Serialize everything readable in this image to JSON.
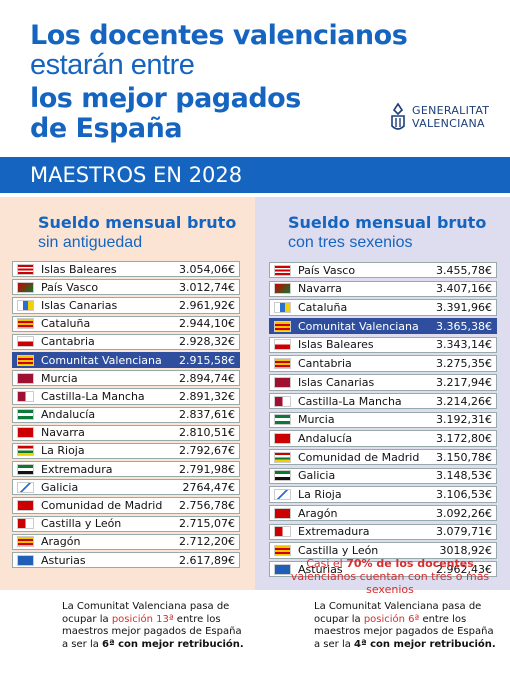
{
  "header": {
    "title_lines": [
      "Los docentes valencianos",
      "estarán entre",
      "los mejor pagados",
      "de España"
    ],
    "logo": [
      "GENERALITAT",
      "VALENCIANA"
    ]
  },
  "banner": "MAESTROS EN 2028",
  "panels": [
    {
      "heading": "Sueldo mensual bruto",
      "subheading": "sin antiguedad",
      "rows": [
        [
          "Islas Baleares",
          "3.054,06€"
        ],
        [
          "País Vasco",
          "3.012,74€"
        ],
        [
          "Islas Canarias",
          "2.961,92€"
        ],
        [
          "Cataluña",
          "2.944,10€"
        ],
        [
          "Cantabria",
          "2.928,32€"
        ],
        [
          "Comunitat Valenciana",
          "2.915,58€"
        ],
        [
          "Murcia",
          "2.894,74€"
        ],
        [
          "Castilla-La Mancha",
          "2.891,32€"
        ],
        [
          "Andalucía",
          "2.837,61€"
        ],
        [
          "Navarra",
          "2.810,51€"
        ],
        [
          "La Rioja",
          "2.792,67€"
        ],
        [
          "Extremadura",
          "2.791,98€"
        ],
        [
          "Galicia",
          "2764,47€"
        ],
        [
          "Comunidad de Madrid",
          "2.756,78€"
        ],
        [
          "Castilla y León",
          "2.715,07€"
        ],
        [
          "Aragón",
          "2.712,20€"
        ],
        [
          "Asturias",
          "2.617,89€"
        ]
      ]
    },
    {
      "heading": "Sueldo mensual bruto",
      "subheading": "con tres sexenios",
      "rows": [
        [
          "País Vasco",
          "3.455,78€"
        ],
        [
          "Navarra",
          "3.407,16€"
        ],
        [
          "Cataluña",
          "3.391,96€"
        ],
        [
          "Comunitat Valenciana",
          "3.365,38€"
        ],
        [
          "Islas Baleares",
          "3.343,14€"
        ],
        [
          "Cantabria",
          "3.275,35€"
        ],
        [
          "Islas Canarias",
          "3.217,94€"
        ],
        [
          "Castilla-La Mancha",
          "3.214,26€"
        ],
        [
          "Murcia",
          "3.192,31€"
        ],
        [
          "Andalucía",
          "3.172,80€"
        ],
        [
          "Comunidad de Madrid",
          "3.150,78€"
        ],
        [
          "Galicia",
          "3.148,53€"
        ],
        [
          "La Rioja",
          "3.106,53€"
        ],
        [
          "Aragón",
          "3.092,26€"
        ],
        [
          "Extremadura",
          "3.079,71€"
        ],
        [
          "Castilla y León",
          "3018,92€"
        ],
        [
          "Asturias",
          "2.962,43€"
        ]
      ]
    }
  ],
  "note": {
    "before": "Casi el ",
    "emphasis": "70% de los docentes",
    "after": " valencianos cuentan con tres o más sexenios"
  },
  "footer": [
    {
      "before": "La Comunitat Valenciana pasa de ocupar la ",
      "highlight": "posición 13ª",
      "middle": " entre los maestros mejor pagados de España a ser la ",
      "emphasis": "6ª con mejor retribución."
    },
    {
      "before": "La Comunitat Valenciana pasa de ocupar la ",
      "highlight": "posición 6ª",
      "middle": " entre los maestros mejor pagados de España a ser la ",
      "emphasis": "4ª con mejor retribución."
    }
  ]
}
